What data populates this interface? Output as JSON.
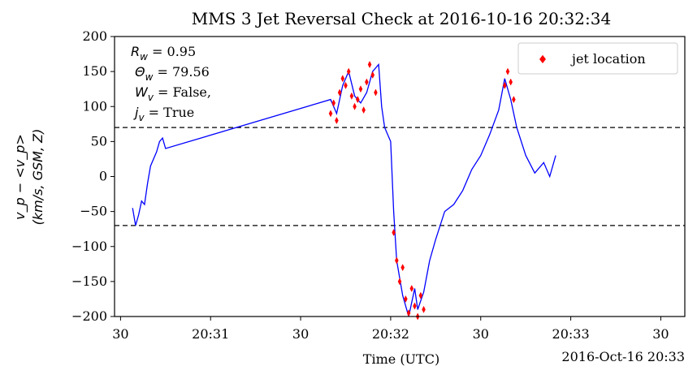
{
  "chart_data": {
    "type": "line",
    "title": "MMS 3 Jet Reversal Check at 2016-10-16 20:32:34",
    "xlabel": "Time (UTC)",
    "ylabel_line1": "v_p − <v_p>",
    "ylabel_line2": "(km/s, GSM, Z)",
    "x_offset_label": "2016-Oct-16 20:33",
    "xlim": [
      "20:30:28",
      "20:33:38"
    ],
    "ylim": [
      -200,
      200
    ],
    "x_ticks": [
      {
        "t": "20:30:30",
        "label": "30"
      },
      {
        "t": "20:31:00",
        "label": "20:31"
      },
      {
        "t": "20:31:30",
        "label": "30"
      },
      {
        "t": "20:32:00",
        "label": "20:32"
      },
      {
        "t": "20:32:30",
        "label": "30"
      },
      {
        "t": "20:33:00",
        "label": "20:33"
      },
      {
        "t": "20:33:30",
        "label": "30"
      }
    ],
    "y_ticks": [
      200,
      150,
      100,
      50,
      0,
      -50,
      -100,
      -150,
      -200
    ],
    "thresholds": [
      70,
      -70
    ],
    "annotations": [
      {
        "var": "R",
        "sub": "w",
        "text": " = 0.95"
      },
      {
        "var": "Θ",
        "sub": "w",
        "text": " = 79.56"
      },
      {
        "var": "W",
        "sub": "v",
        "text": " = False,"
      },
      {
        "var": "j",
        "sub": "v",
        "text": " = True"
      }
    ],
    "legend": {
      "label": "jet location",
      "placement": "top-right"
    },
    "series": [
      {
        "color": "#0000ff",
        "points": [
          [
            "20:30:34",
            -45
          ],
          [
            "20:30:35",
            -70
          ],
          [
            "20:30:36",
            -55
          ],
          [
            "20:30:37",
            -35
          ],
          [
            "20:30:38",
            -40
          ],
          [
            "20:30:39",
            -10
          ],
          [
            "20:30:40",
            15
          ],
          [
            "20:30:41",
            25
          ],
          [
            "20:30:42",
            35
          ],
          [
            "20:30:43",
            50
          ],
          [
            "20:30:44",
            55
          ],
          [
            "20:30:45",
            40
          ],
          [
            "20:31:40",
            110
          ],
          [
            "20:31:42",
            90
          ],
          [
            "20:31:44",
            130
          ],
          [
            "20:31:46",
            150
          ],
          [
            "20:31:48",
            115
          ],
          [
            "20:31:50",
            105
          ],
          [
            "20:31:52",
            120
          ],
          [
            "20:31:54",
            150
          ],
          [
            "20:31:56",
            160
          ],
          [
            "20:31:57",
            100
          ],
          [
            "20:31:58",
            70
          ],
          [
            "20:32:00",
            50
          ],
          [
            "20:32:01",
            -50
          ],
          [
            "20:32:02",
            -120
          ],
          [
            "20:32:04",
            -170
          ],
          [
            "20:32:06",
            -200
          ],
          [
            "20:32:08",
            -160
          ],
          [
            "20:32:09",
            -190
          ],
          [
            "20:32:11",
            -165
          ],
          [
            "20:32:13",
            -120
          ],
          [
            "20:32:15",
            -90
          ],
          [
            "20:32:18",
            -50
          ],
          [
            "20:32:21",
            -40
          ],
          [
            "20:32:24",
            -20
          ],
          [
            "20:32:27",
            10
          ],
          [
            "20:32:30",
            30
          ],
          [
            "20:32:33",
            60
          ],
          [
            "20:32:36",
            95
          ],
          [
            "20:32:38",
            140
          ],
          [
            "20:32:40",
            110
          ],
          [
            "20:32:42",
            70
          ],
          [
            "20:32:45",
            30
          ],
          [
            "20:32:48",
            5
          ],
          [
            "20:32:51",
            20
          ],
          [
            "20:32:53",
            0
          ],
          [
            "20:32:55",
            30
          ]
        ]
      }
    ],
    "markers": {
      "color": "#ff0000",
      "symbol": "thin-diamond",
      "points": [
        [
          "20:31:40",
          90
        ],
        [
          "20:31:41",
          105
        ],
        [
          "20:31:42",
          80
        ],
        [
          "20:31:43",
          120
        ],
        [
          "20:31:44",
          140
        ],
        [
          "20:31:45",
          130
        ],
        [
          "20:31:46",
          150
        ],
        [
          "20:31:47",
          115
        ],
        [
          "20:31:48",
          100
        ],
        [
          "20:31:49",
          110
        ],
        [
          "20:31:50",
          125
        ],
        [
          "20:31:51",
          95
        ],
        [
          "20:31:52",
          135
        ],
        [
          "20:31:53",
          160
        ],
        [
          "20:31:54",
          145
        ],
        [
          "20:31:55",
          120
        ],
        [
          "20:32:01",
          -80
        ],
        [
          "20:32:02",
          -120
        ],
        [
          "20:32:03",
          -150
        ],
        [
          "20:32:04",
          -130
        ],
        [
          "20:32:05",
          -175
        ],
        [
          "20:32:06",
          -195
        ],
        [
          "20:32:07",
          -160
        ],
        [
          "20:32:08",
          -185
        ],
        [
          "20:32:09",
          -200
        ],
        [
          "20:32:10",
          -170
        ],
        [
          "20:32:11",
          -190
        ],
        [
          "20:32:38",
          130
        ],
        [
          "20:32:39",
          150
        ],
        [
          "20:32:40",
          135
        ],
        [
          "20:32:41",
          110
        ]
      ]
    }
  }
}
